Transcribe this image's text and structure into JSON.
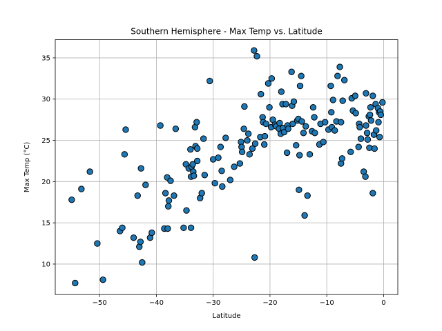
{
  "chart_data": {
    "type": "scatter",
    "title": "Southern Hemisphere - Max Temp vs. Latitude",
    "xlabel": "Latitude",
    "ylabel": "Max Temp (°C)",
    "xlim": [
      -57.8,
      2.5
    ],
    "ylim": [
      6.3,
      37.2
    ],
    "xticks": [
      -50,
      -40,
      -30,
      -20,
      -10,
      0
    ],
    "yticks": [
      10,
      15,
      20,
      25,
      30,
      35
    ],
    "grid": true,
    "legend": "none",
    "colors": {
      "marker_fill": "#1f77b4",
      "marker_edge": "#000000",
      "grid": "#b0b0b0"
    },
    "points": [
      [
        -54.9,
        17.8
      ],
      [
        -54.3,
        7.7
      ],
      [
        -53.2,
        19.1
      ],
      [
        -51.7,
        21.2
      ],
      [
        -50.4,
        12.5
      ],
      [
        -49.4,
        8.1
      ],
      [
        -46.4,
        14.0
      ],
      [
        -46.0,
        14.4
      ],
      [
        -45.6,
        23.3
      ],
      [
        -45.4,
        26.3
      ],
      [
        -44.0,
        13.2
      ],
      [
        -43.3,
        18.3
      ],
      [
        -43.0,
        12.1
      ],
      [
        -42.8,
        12.7
      ],
      [
        -42.7,
        21.6
      ],
      [
        -42.5,
        10.2
      ],
      [
        -41.9,
        19.6
      ],
      [
        -41.1,
        13.2
      ],
      [
        -40.8,
        13.8
      ],
      [
        -39.3,
        26.8
      ],
      [
        -38.6,
        14.3
      ],
      [
        -38.4,
        18.6
      ],
      [
        -38.1,
        20.5
      ],
      [
        -38.0,
        14.3
      ],
      [
        -37.9,
        17.0
      ],
      [
        -37.8,
        17.7
      ],
      [
        -37.5,
        20.1
      ],
      [
        -36.9,
        18.3
      ],
      [
        -36.6,
        26.4
      ],
      [
        -35.2,
        14.4
      ],
      [
        -34.8,
        22.1
      ],
      [
        -34.7,
        16.5
      ],
      [
        -34.3,
        21.6
      ],
      [
        -34.0,
        23.9
      ],
      [
        -33.9,
        20.6
      ],
      [
        -33.9,
        14.4
      ],
      [
        -33.8,
        21.8
      ],
      [
        -33.6,
        22.1
      ],
      [
        -33.5,
        21.2
      ],
      [
        -33.4,
        20.7
      ],
      [
        -33.2,
        26.6
      ],
      [
        -33.1,
        24.3
      ],
      [
        -32.9,
        27.2
      ],
      [
        -32.8,
        24.0
      ],
      [
        -32.8,
        22.5
      ],
      [
        -32.3,
        18.0
      ],
      [
        -32.0,
        18.6
      ],
      [
        -31.7,
        25.2
      ],
      [
        -31.5,
        20.8
      ],
      [
        -30.6,
        32.2
      ],
      [
        -30.0,
        22.7
      ],
      [
        -29.7,
        19.8
      ],
      [
        -29.1,
        22.9
      ],
      [
        -28.7,
        24.2
      ],
      [
        -28.5,
        21.3
      ],
      [
        -28.4,
        19.4
      ],
      [
        -27.8,
        25.3
      ],
      [
        -27.0,
        20.2
      ],
      [
        -26.3,
        21.8
      ],
      [
        -25.3,
        22.2
      ],
      [
        -25.1,
        24.8
      ],
      [
        -25.0,
        24.2
      ],
      [
        -24.9,
        23.6
      ],
      [
        -24.6,
        26.4
      ],
      [
        -24.5,
        29.1
      ],
      [
        -24.0,
        25.0
      ],
      [
        -23.8,
        25.8
      ],
      [
        -23.6,
        23.3
      ],
      [
        -23.1,
        24.0
      ],
      [
        -22.8,
        35.9
      ],
      [
        -22.7,
        10.8
      ],
      [
        -22.6,
        24.6
      ],
      [
        -22.3,
        35.2
      ],
      [
        -21.7,
        25.4
      ],
      [
        -21.6,
        30.6
      ],
      [
        -21.3,
        27.8
      ],
      [
        -21.2,
        27.2
      ],
      [
        -21.0,
        24.5
      ],
      [
        -20.9,
        25.5
      ],
      [
        -20.7,
        27.0
      ],
      [
        -20.3,
        31.9
      ],
      [
        -20.1,
        29.0
      ],
      [
        -19.8,
        26.6
      ],
      [
        -19.7,
        32.5
      ],
      [
        -19.5,
        27.5
      ],
      [
        -19.1,
        26.9
      ],
      [
        -18.9,
        26.7
      ],
      [
        -18.4,
        26.4
      ],
      [
        -18.3,
        27.1
      ],
      [
        -18.1,
        25.8
      ],
      [
        -18.0,
        30.9
      ],
      [
        -17.8,
        29.4
      ],
      [
        -17.7,
        26.5
      ],
      [
        -17.5,
        26.0
      ],
      [
        -17.2,
        29.4
      ],
      [
        -17.0,
        23.5
      ],
      [
        -16.9,
        26.8
      ],
      [
        -16.8,
        26.4
      ],
      [
        -16.2,
        33.3
      ],
      [
        -16.1,
        29.2
      ],
      [
        -16.0,
        27.0
      ],
      [
        -15.8,
        29.7
      ],
      [
        -15.4,
        24.4
      ],
      [
        -15.2,
        27.4
      ],
      [
        -15.0,
        27.6
      ],
      [
        -14.9,
        19.0
      ],
      [
        -14.8,
        23.2
      ],
      [
        -14.7,
        31.6
      ],
      [
        -14.5,
        32.8
      ],
      [
        -14.4,
        27.3
      ],
      [
        -14.1,
        25.9
      ],
      [
        -13.9,
        15.9
      ],
      [
        -13.7,
        26.7
      ],
      [
        -13.4,
        18.3
      ],
      [
        -13.0,
        23.3
      ],
      [
        -12.6,
        26.1
      ],
      [
        -12.4,
        29.0
      ],
      [
        -12.2,
        27.8
      ],
      [
        -12.1,
        25.9
      ],
      [
        -11.3,
        24.5
      ],
      [
        -11.1,
        27.0
      ],
      [
        -10.6,
        24.8
      ],
      [
        -10.3,
        27.2
      ],
      [
        -9.7,
        26.3
      ],
      [
        -9.3,
        31.6
      ],
      [
        -9.2,
        28.4
      ],
      [
        -9.1,
        26.6
      ],
      [
        -8.9,
        29.9
      ],
      [
        -8.6,
        26.2
      ],
      [
        -8.3,
        27.3
      ],
      [
        -8.1,
        32.8
      ],
      [
        -7.7,
        33.9
      ],
      [
        -7.5,
        27.2
      ],
      [
        -7.5,
        22.2
      ],
      [
        -7.3,
        22.8
      ],
      [
        -7.2,
        29.8
      ],
      [
        -6.9,
        32.3
      ],
      [
        -5.8,
        23.6
      ],
      [
        -5.6,
        30.1
      ],
      [
        -5.4,
        28.6
      ],
      [
        -5.0,
        30.4
      ],
      [
        -4.9,
        28.3
      ],
      [
        -4.4,
        24.2
      ],
      [
        -4.3,
        27.0
      ],
      [
        -4.2,
        26.6
      ],
      [
        -4.0,
        25.2
      ],
      [
        -3.5,
        21.2
      ],
      [
        -3.2,
        20.6
      ],
      [
        -3.1,
        30.7
      ],
      [
        -3.1,
        26.8
      ],
      [
        -2.9,
        25.9
      ],
      [
        -2.8,
        25.1
      ],
      [
        -2.6,
        27.9
      ],
      [
        -2.5,
        24.1
      ],
      [
        -2.4,
        28.1
      ],
      [
        -2.3,
        29.0
      ],
      [
        -2.2,
        27.4
      ],
      [
        -1.9,
        18.6
      ],
      [
        -1.9,
        30.4
      ],
      [
        -1.7,
        25.7
      ],
      [
        -1.6,
        24.0
      ],
      [
        -1.4,
        29.4
      ],
      [
        -1.3,
        26.2
      ],
      [
        -1.0,
        28.9
      ],
      [
        -0.9,
        27.2
      ],
      [
        -0.8,
        28.4
      ],
      [
        -0.7,
        25.4
      ],
      [
        -0.6,
        28.5
      ],
      [
        -0.5,
        28.1
      ],
      [
        -0.2,
        29.6
      ]
    ]
  }
}
